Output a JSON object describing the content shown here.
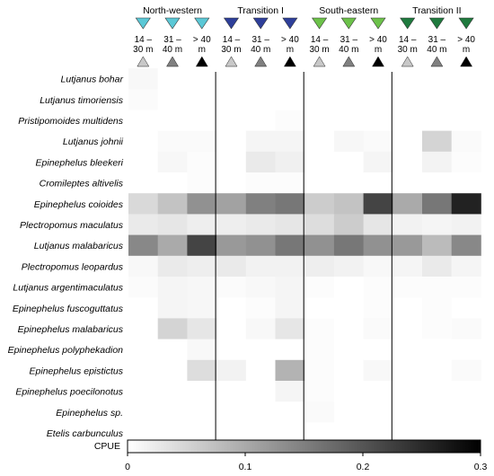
{
  "chart_data": {
    "type": "heatmap",
    "regions": [
      {
        "name": "North-western",
        "color": "#5bc8d6"
      },
      {
        "name": "Transition I",
        "color": "#2e3f9a"
      },
      {
        "name": "South-eastern",
        "color": "#6cc24a"
      },
      {
        "name": "Transition II",
        "color": "#1f7a3e"
      }
    ],
    "depths": [
      {
        "line1": "14 –",
        "line2": "30 m",
        "shade": "#c8c8c8"
      },
      {
        "line1": "31 –",
        "line2": "40 m",
        "shade": "#808080"
      },
      {
        "line1": "> 40",
        "line2": "m",
        "shade": "#000000"
      }
    ],
    "species": [
      "Lutjanus bohar",
      "Lutjanus timoriensis",
      "Pristipomoides multidens",
      "Lutjanus johnii",
      "Epinephelus bleekeri",
      "Cromileptes altivelis",
      "Epinephelus coioides",
      "Plectropomus maculatus",
      "Lutjanus malabaricus",
      "Plectropomus leopardus",
      "Lutjanus argentimaculatus",
      "Epinephelus fuscoguttatus",
      "Epinephelus malabaricus",
      "Epinephelus polyphekadion",
      "Epinephelus epistictus",
      "Epinephelus poecilonotus",
      "Epinephelus sp.",
      "Etelis carbunculus"
    ],
    "values": [
      [
        0.008,
        0,
        0,
        0,
        0,
        0,
        0,
        0,
        0,
        0,
        0,
        0
      ],
      [
        0.005,
        0,
        0,
        0,
        0,
        0,
        0,
        0,
        0,
        0,
        0,
        0
      ],
      [
        0,
        0,
        0,
        0,
        0,
        0.004,
        0,
        0,
        0,
        0,
        0,
        0
      ],
      [
        0,
        0.006,
        0.006,
        0,
        0.012,
        0.012,
        0,
        0.01,
        0.006,
        0,
        0.05,
        0.006
      ],
      [
        0,
        0.01,
        0.004,
        0,
        0.025,
        0.018,
        0,
        0,
        0.012,
        0,
        0.014,
        0.004
      ],
      [
        0,
        0,
        0.004,
        0,
        0.004,
        0.004,
        0,
        0,
        0,
        0,
        0,
        0
      ],
      [
        0.045,
        0.07,
        0.13,
        0.11,
        0.15,
        0.16,
        0.06,
        0.07,
        0.22,
        0.1,
        0.16,
        0.26
      ],
      [
        0.025,
        0.03,
        0.02,
        0.02,
        0.025,
        0.03,
        0.04,
        0.06,
        0.03,
        0.015,
        0.012,
        0.015
      ],
      [
        0.14,
        0.1,
        0.22,
        0.12,
        0.13,
        0.16,
        0.13,
        0.16,
        0.13,
        0.12,
        0.08,
        0.14
      ],
      [
        0.008,
        0.025,
        0.02,
        0.025,
        0.015,
        0.015,
        0.02,
        0.015,
        0.008,
        0.012,
        0.025,
        0.012
      ],
      [
        0.005,
        0.012,
        0.01,
        0.005,
        0.008,
        0.012,
        0.004,
        0,
        0.004,
        0.004,
        0.004,
        0.004
      ],
      [
        0,
        0.012,
        0.01,
        0,
        0.004,
        0.012,
        0,
        0,
        0.004,
        0,
        0.004,
        0
      ],
      [
        0,
        0.05,
        0.03,
        0,
        0.008,
        0.03,
        0.004,
        0,
        0.006,
        0,
        0.004,
        0.006
      ],
      [
        0,
        0,
        0.008,
        0,
        0,
        0,
        0.004,
        0,
        0,
        0,
        0,
        0
      ],
      [
        0,
        0,
        0.04,
        0.015,
        0,
        0.09,
        0.004,
        0,
        0.008,
        0,
        0,
        0.006
      ],
      [
        0,
        0,
        0,
        0,
        0,
        0.012,
        0.004,
        0,
        0,
        0,
        0,
        0
      ],
      [
        0,
        0,
        0,
        0,
        0,
        0,
        0.006,
        0,
        0,
        0,
        0,
        0
      ],
      [
        0,
        0,
        0,
        0,
        0,
        0,
        0,
        0,
        0,
        0,
        0,
        0
      ]
    ],
    "colorbar": {
      "label": "CPUE",
      "min": 0,
      "max": 0.3,
      "ticks": [
        0,
        0.1,
        0.2,
        0.3
      ],
      "tick_labels": [
        "0",
        "0.1",
        "0.2",
        "0.3"
      ]
    },
    "colormap": [
      "#ffffff",
      "#000000"
    ]
  }
}
